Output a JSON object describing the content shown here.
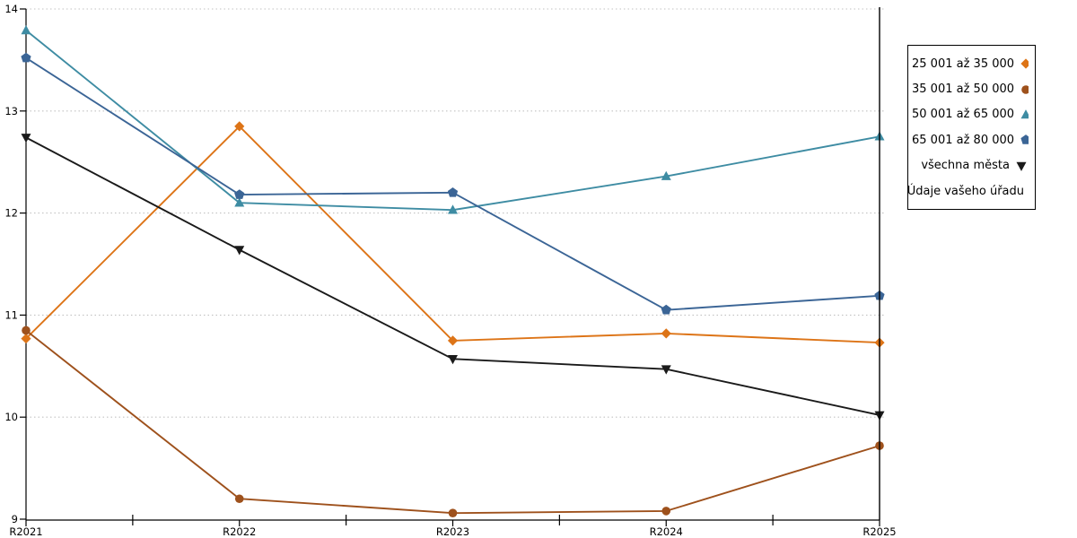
{
  "chart_data": {
    "type": "line",
    "title": "",
    "xlabel": "",
    "ylabel": "",
    "x_categories": [
      "R2021",
      "R2022",
      "R2023",
      "R2024",
      "R2025"
    ],
    "ylim": [
      9,
      14
    ],
    "yticks": [
      9,
      10,
      11,
      12,
      13,
      14
    ],
    "grid": "horizontal dotted gridlines at integer y values",
    "legend_position": "outside-right",
    "vline_at_category": "R2025",
    "series": [
      {
        "name": "25 001 až 35 000",
        "marker": "diamond",
        "color": "#dd7417",
        "values": [
          10.77,
          12.85,
          10.75,
          10.82,
          10.73
        ]
      },
      {
        "name": "35 001 až 50 000",
        "marker": "circle",
        "color": "#9e511c",
        "values": [
          10.85,
          9.2,
          9.06,
          9.08,
          9.72
        ]
      },
      {
        "name": "50 001 až 65 000",
        "marker": "triangle-up",
        "color": "#3e8ca3",
        "values": [
          13.79,
          12.1,
          12.03,
          12.36,
          12.75
        ]
      },
      {
        "name": "65 001 až 80 000",
        "marker": "pentagon",
        "color": "#3b6596",
        "values": [
          13.52,
          12.18,
          12.2,
          11.05,
          11.19
        ]
      },
      {
        "name": "všechna města",
        "marker": "triangle-down",
        "color": "#1a1a1a",
        "values": [
          12.74,
          11.64,
          10.57,
          10.47,
          10.02
        ]
      },
      {
        "name": "Údaje vašeho úřadu",
        "marker": "square-open",
        "color": "#dd1111",
        "values": []
      }
    ]
  },
  "colors": {
    "background": "#ffffff",
    "grid": "#c2c2c2",
    "axis": "#000000"
  }
}
